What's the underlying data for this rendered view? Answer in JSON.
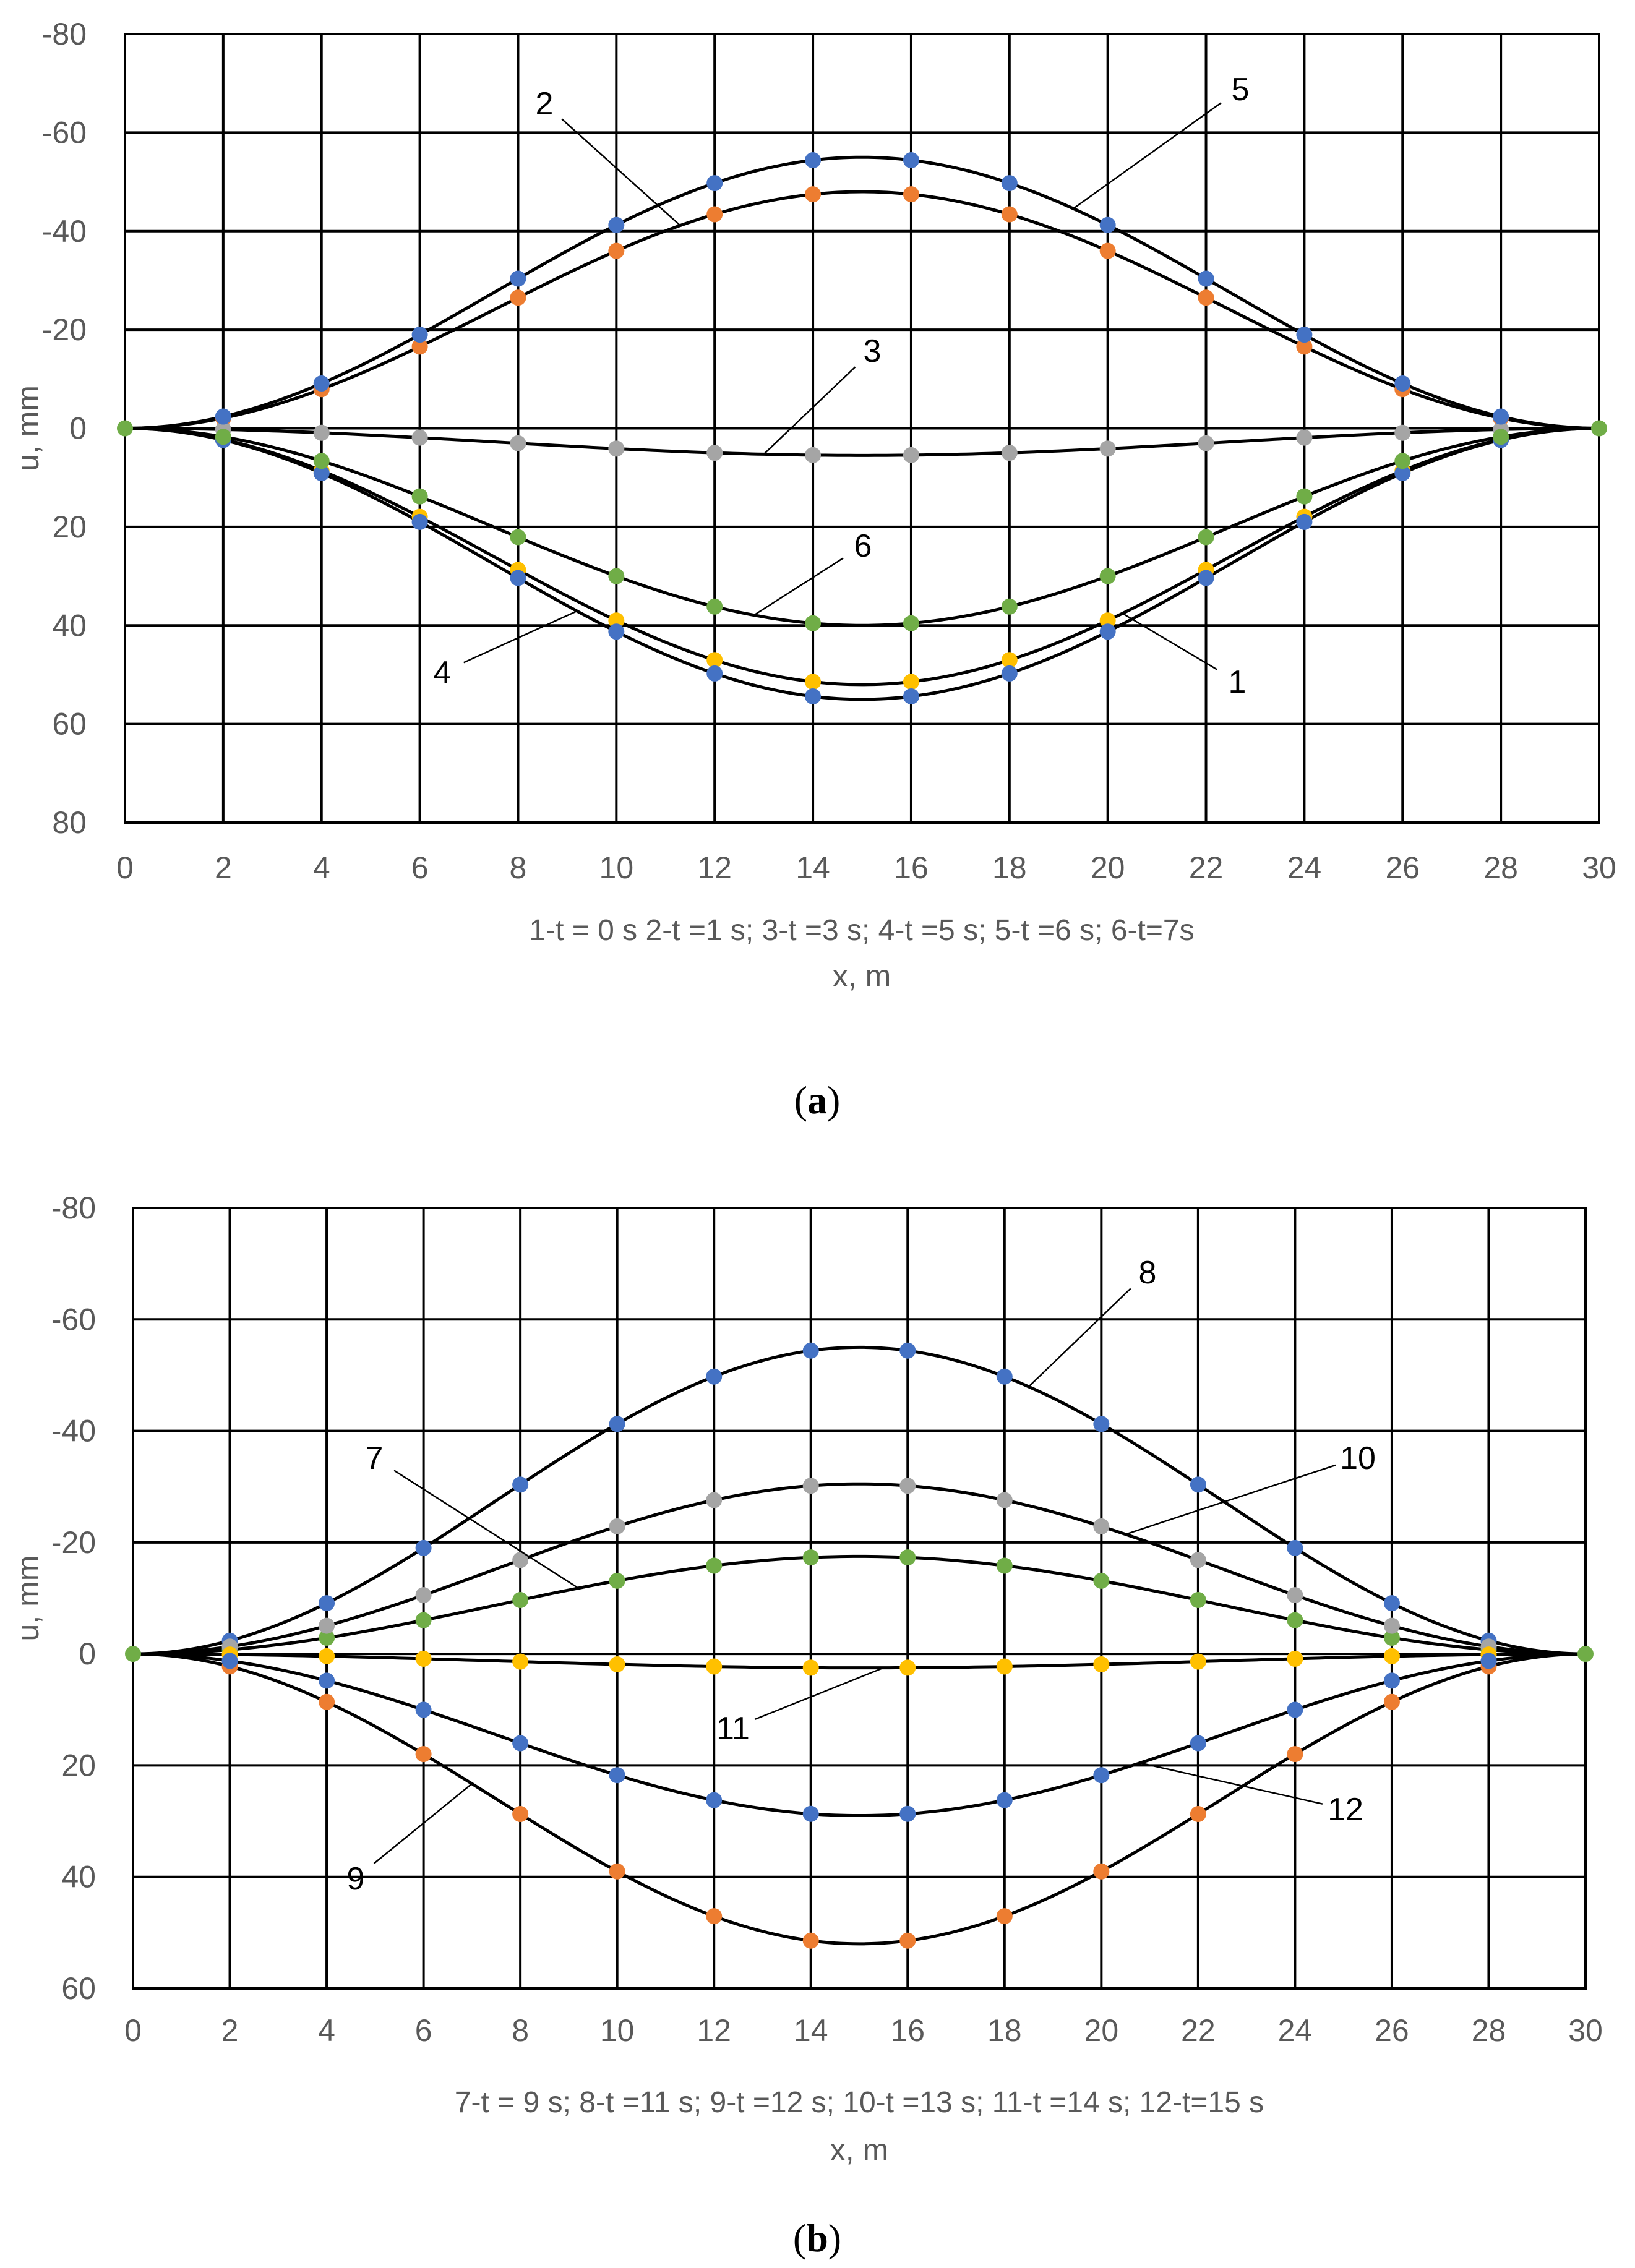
{
  "colors": {
    "blue": "#4472C4",
    "orange": "#ED7D31",
    "gray": "#A5A5A5",
    "yellow": "#FFC000",
    "green": "#70AD47",
    "line": "#000000",
    "text": "#595959"
  },
  "chart_data": [
    {
      "id": "a",
      "type": "line",
      "panel_label": {
        "open": "(",
        "letter": "a",
        "close": ")"
      },
      "xlabel": "x,  m",
      "ylabel": "u, mm",
      "legend_text": "1-t = 0 s  2-t =1 s;  3-t =3 s;  4-t =5 s;  5-t =6 s; 6-t=7s",
      "xlim": [
        0,
        30
      ],
      "ylim": [
        -80,
        80
      ],
      "y_inverted": true,
      "x_ticks": [
        0,
        2,
        4,
        6,
        8,
        10,
        12,
        14,
        16,
        18,
        20,
        22,
        24,
        26,
        28,
        30
      ],
      "y_ticks": [
        -80,
        -60,
        -40,
        -20,
        0,
        20,
        40,
        60,
        80
      ],
      "x": [
        0,
        2,
        4,
        6,
        8,
        10,
        12,
        14,
        16,
        18,
        20,
        22,
        24,
        26,
        28,
        30
      ],
      "series": [
        {
          "name": "1",
          "marker_color": "#FFC000",
          "amplitude": 52
        },
        {
          "name": "2",
          "marker_color": "#ED7D31",
          "amplitude": -48
        },
        {
          "name": "3",
          "marker_color": "#A5A5A5",
          "amplitude": 5.5
        },
        {
          "name": "4",
          "marker_color": "#4472C4",
          "amplitude": 55
        },
        {
          "name": "5",
          "marker_color": "#4472C4",
          "amplitude": -55
        },
        {
          "name": "6",
          "marker_color": "#70AD47",
          "amplitude": 40
        }
      ],
      "callouts": [
        {
          "label": "1",
          "series": "1",
          "at_x": 20.3
        },
        {
          "label": "2",
          "series": "2",
          "at_x": 11.3
        },
        {
          "label": "3",
          "series": "3",
          "at_x": 13.0
        },
        {
          "label": "4",
          "series": "4",
          "at_x": 9.2
        },
        {
          "label": "5",
          "series": "5",
          "at_x": 19.3
        },
        {
          "label": "6",
          "series": "6",
          "at_x": 12.8
        }
      ]
    },
    {
      "id": "b",
      "type": "line",
      "panel_label": {
        "open": "(",
        "letter": "b",
        "close": ")"
      },
      "xlabel": "x,  m",
      "ylabel": "u, mm",
      "legend_text": "7-t = 9 s;  8-t =11 s;  9-t =12 s;  10-t =13 s;  11-t =14 s; 12-t=15 s",
      "xlim": [
        0,
        30
      ],
      "ylim": [
        -80,
        60
      ],
      "y_inverted": true,
      "x_ticks": [
        0,
        2,
        4,
        6,
        8,
        10,
        12,
        14,
        16,
        18,
        20,
        22,
        24,
        26,
        28,
        30
      ],
      "y_ticks": [
        -80,
        -60,
        -40,
        -20,
        0,
        20,
        40,
        60
      ],
      "x": [
        0,
        2,
        4,
        6,
        8,
        10,
        12,
        14,
        16,
        18,
        20,
        22,
        24,
        26,
        28,
        30
      ],
      "series": [
        {
          "name": "7",
          "marker_color": "#70AD47",
          "amplitude": -17.5
        },
        {
          "name": "8",
          "marker_color": "#4472C4",
          "amplitude": -55
        },
        {
          "name": "9",
          "marker_color": "#ED7D31",
          "amplitude": 52
        },
        {
          "name": "10",
          "marker_color": "#A5A5A5",
          "amplitude": -30.5
        },
        {
          "name": "11",
          "marker_color": "#FFC000",
          "amplitude": 2.5
        },
        {
          "name": "12",
          "marker_color": "#4472C4",
          "amplitude": 29
        }
      ],
      "callouts": [
        {
          "label": "7",
          "series": "7",
          "at_x": 9.2
        },
        {
          "label": "8",
          "series": "8",
          "at_x": 18.5
        },
        {
          "label": "9",
          "series": "9",
          "at_x": 7.0
        },
        {
          "label": "10",
          "series": "10",
          "at_x": 20.5
        },
        {
          "label": "11",
          "series": "11",
          "at_x": 15.5
        },
        {
          "label": "12",
          "series": "12",
          "at_x": 20.8
        }
      ]
    }
  ]
}
